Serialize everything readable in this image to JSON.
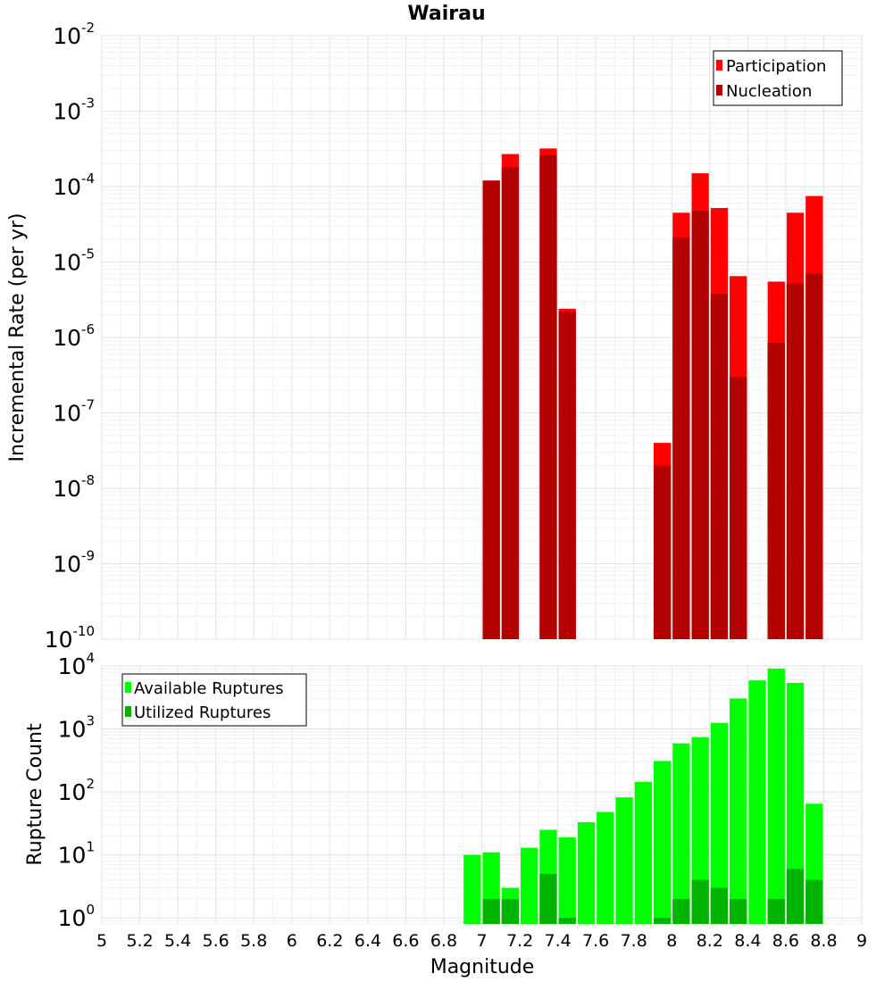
{
  "title": "Wairau",
  "chart_data": [
    {
      "type": "bar",
      "name": "rate-panel",
      "ylabel": "Incremental Rate (per yr)",
      "yscale": "log",
      "ylim": [
        1e-10,
        0.01
      ],
      "xlim": [
        5,
        9
      ],
      "bar_width": 0.1,
      "yticks": [
        {
          "base": "10",
          "exp": "-10"
        },
        {
          "base": "10",
          "exp": "-9"
        },
        {
          "base": "10",
          "exp": "-8"
        },
        {
          "base": "10",
          "exp": "-7"
        },
        {
          "base": "10",
          "exp": "-6"
        },
        {
          "base": "10",
          "exp": "-5"
        },
        {
          "base": "10",
          "exp": "-4"
        },
        {
          "base": "10",
          "exp": "-3"
        },
        {
          "base": "10",
          "exp": "-2"
        }
      ],
      "legend_position": "top-right",
      "series": [
        {
          "name": "Participation",
          "color": "#ff0000",
          "x": [
            7.05,
            7.15,
            7.35,
            7.45,
            7.95,
            8.05,
            8.15,
            8.25,
            8.35,
            8.55,
            8.65,
            8.75
          ],
          "values": [
            0.00012,
            0.00027,
            0.00032,
            2.4e-06,
            4e-08,
            4.5e-05,
            0.00015,
            5.2e-05,
            6.5e-06,
            5.5e-06,
            4.5e-05,
            7.5e-05
          ]
        },
        {
          "name": "Nucleation",
          "color": "#b30000",
          "x": [
            7.05,
            7.15,
            7.35,
            7.45,
            7.95,
            8.05,
            8.15,
            8.25,
            8.35,
            8.55,
            8.65,
            8.75
          ],
          "values": [
            0.00012,
            0.00018,
            0.00026,
            2.2e-06,
            2e-08,
            2.1e-05,
            4.8e-05,
            3.8e-06,
            3e-07,
            8.5e-07,
            5.2e-06,
            7e-06
          ]
        }
      ]
    },
    {
      "type": "bar",
      "name": "count-panel",
      "ylabel": "Rupture Count",
      "xlabel": "Magnitude",
      "yscale": "log",
      "ylim": [
        0.8,
        10000
      ],
      "xlim": [
        5,
        9
      ],
      "bar_width": 0.1,
      "xticks": [
        "5",
        "5.2",
        "5.4",
        "5.6",
        "5.8",
        "6",
        "6.2",
        "6.4",
        "6.6",
        "6.8",
        "7",
        "7.2",
        "7.4",
        "7.6",
        "7.8",
        "8",
        "8.2",
        "8.4",
        "8.6",
        "8.8",
        "9"
      ],
      "yticks": [
        {
          "base": "10",
          "exp": "0"
        },
        {
          "base": "10",
          "exp": "1"
        },
        {
          "base": "10",
          "exp": "2"
        },
        {
          "base": "10",
          "exp": "3"
        },
        {
          "base": "10",
          "exp": "4"
        }
      ],
      "legend_position": "top-left",
      "series": [
        {
          "name": "Available Ruptures",
          "color": "#00ff00",
          "x": [
            6.95,
            7.05,
            7.15,
            7.25,
            7.35,
            7.45,
            7.55,
            7.65,
            7.75,
            7.85,
            7.95,
            8.05,
            8.15,
            8.25,
            8.35,
            8.45,
            8.55,
            8.65,
            8.75
          ],
          "values": [
            10,
            11,
            3,
            13,
            25,
            19,
            33,
            48,
            82,
            145,
            310,
            590,
            740,
            1250,
            3050,
            5900,
            9100,
            5400,
            65
          ]
        },
        {
          "name": "Utilized Ruptures",
          "color": "#00b300",
          "x": [
            7.05,
            7.15,
            7.35,
            7.45,
            7.95,
            8.05,
            8.15,
            8.25,
            8.35,
            8.55,
            8.65,
            8.75
          ],
          "values": [
            2,
            2,
            5,
            1,
            1,
            2,
            4,
            3,
            2,
            2,
            6,
            4
          ]
        }
      ]
    }
  ]
}
